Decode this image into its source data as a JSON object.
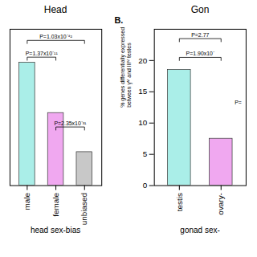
{
  "chart_data": [
    {
      "type": "bar",
      "title": "Head",
      "categories": [
        "male",
        "female",
        "unbiased"
      ],
      "values": [
        22,
        13,
        6
      ],
      "colors": [
        "#aaeee8",
        "#f0a8f0",
        "#c8c8c8"
      ],
      "xlabel": "head sex-bias",
      "ylim": [
        0,
        28
      ],
      "tick_labels": "x",
      "annotations": [
        {
          "text": "P=1.37x10⁻¹¹",
          "from": "male",
          "to": "female",
          "y": 23
        },
        {
          "text": "P=1.03x10⁻⁴²",
          "from": "male",
          "to": "unbiased",
          "y": 26
        },
        {
          "text": "P=2.35x10⁻³¹",
          "from": "female",
          "to": "unbiased",
          "y": 10.5
        }
      ]
    },
    {
      "type": "bar",
      "title": "Gon",
      "categories": [
        "testis",
        "ovary-"
      ],
      "values": [
        18.5,
        7.5
      ],
      "colors": [
        "#aaeee8",
        "#f0a8f0"
      ],
      "xlabel": "gonad sex-",
      "ylabel": "% genes differentially expressed\nbetween γᴹ and IIIᴹ testes",
      "ylim": [
        0,
        25
      ],
      "yticks": [
        0,
        5,
        10,
        15,
        20
      ],
      "annotations": [
        {
          "text": "P=1.90x10⁻",
          "from": "testis",
          "to": "ovary-",
          "y": 20.5
        },
        {
          "text": "P=2.77",
          "from": "testis",
          "to": "ovary-",
          "y": 23.5
        },
        {
          "text": "P=",
          "at": "ovary-",
          "y": 13
        },
        {
          "text": "B."
        }
      ]
    }
  ]
}
